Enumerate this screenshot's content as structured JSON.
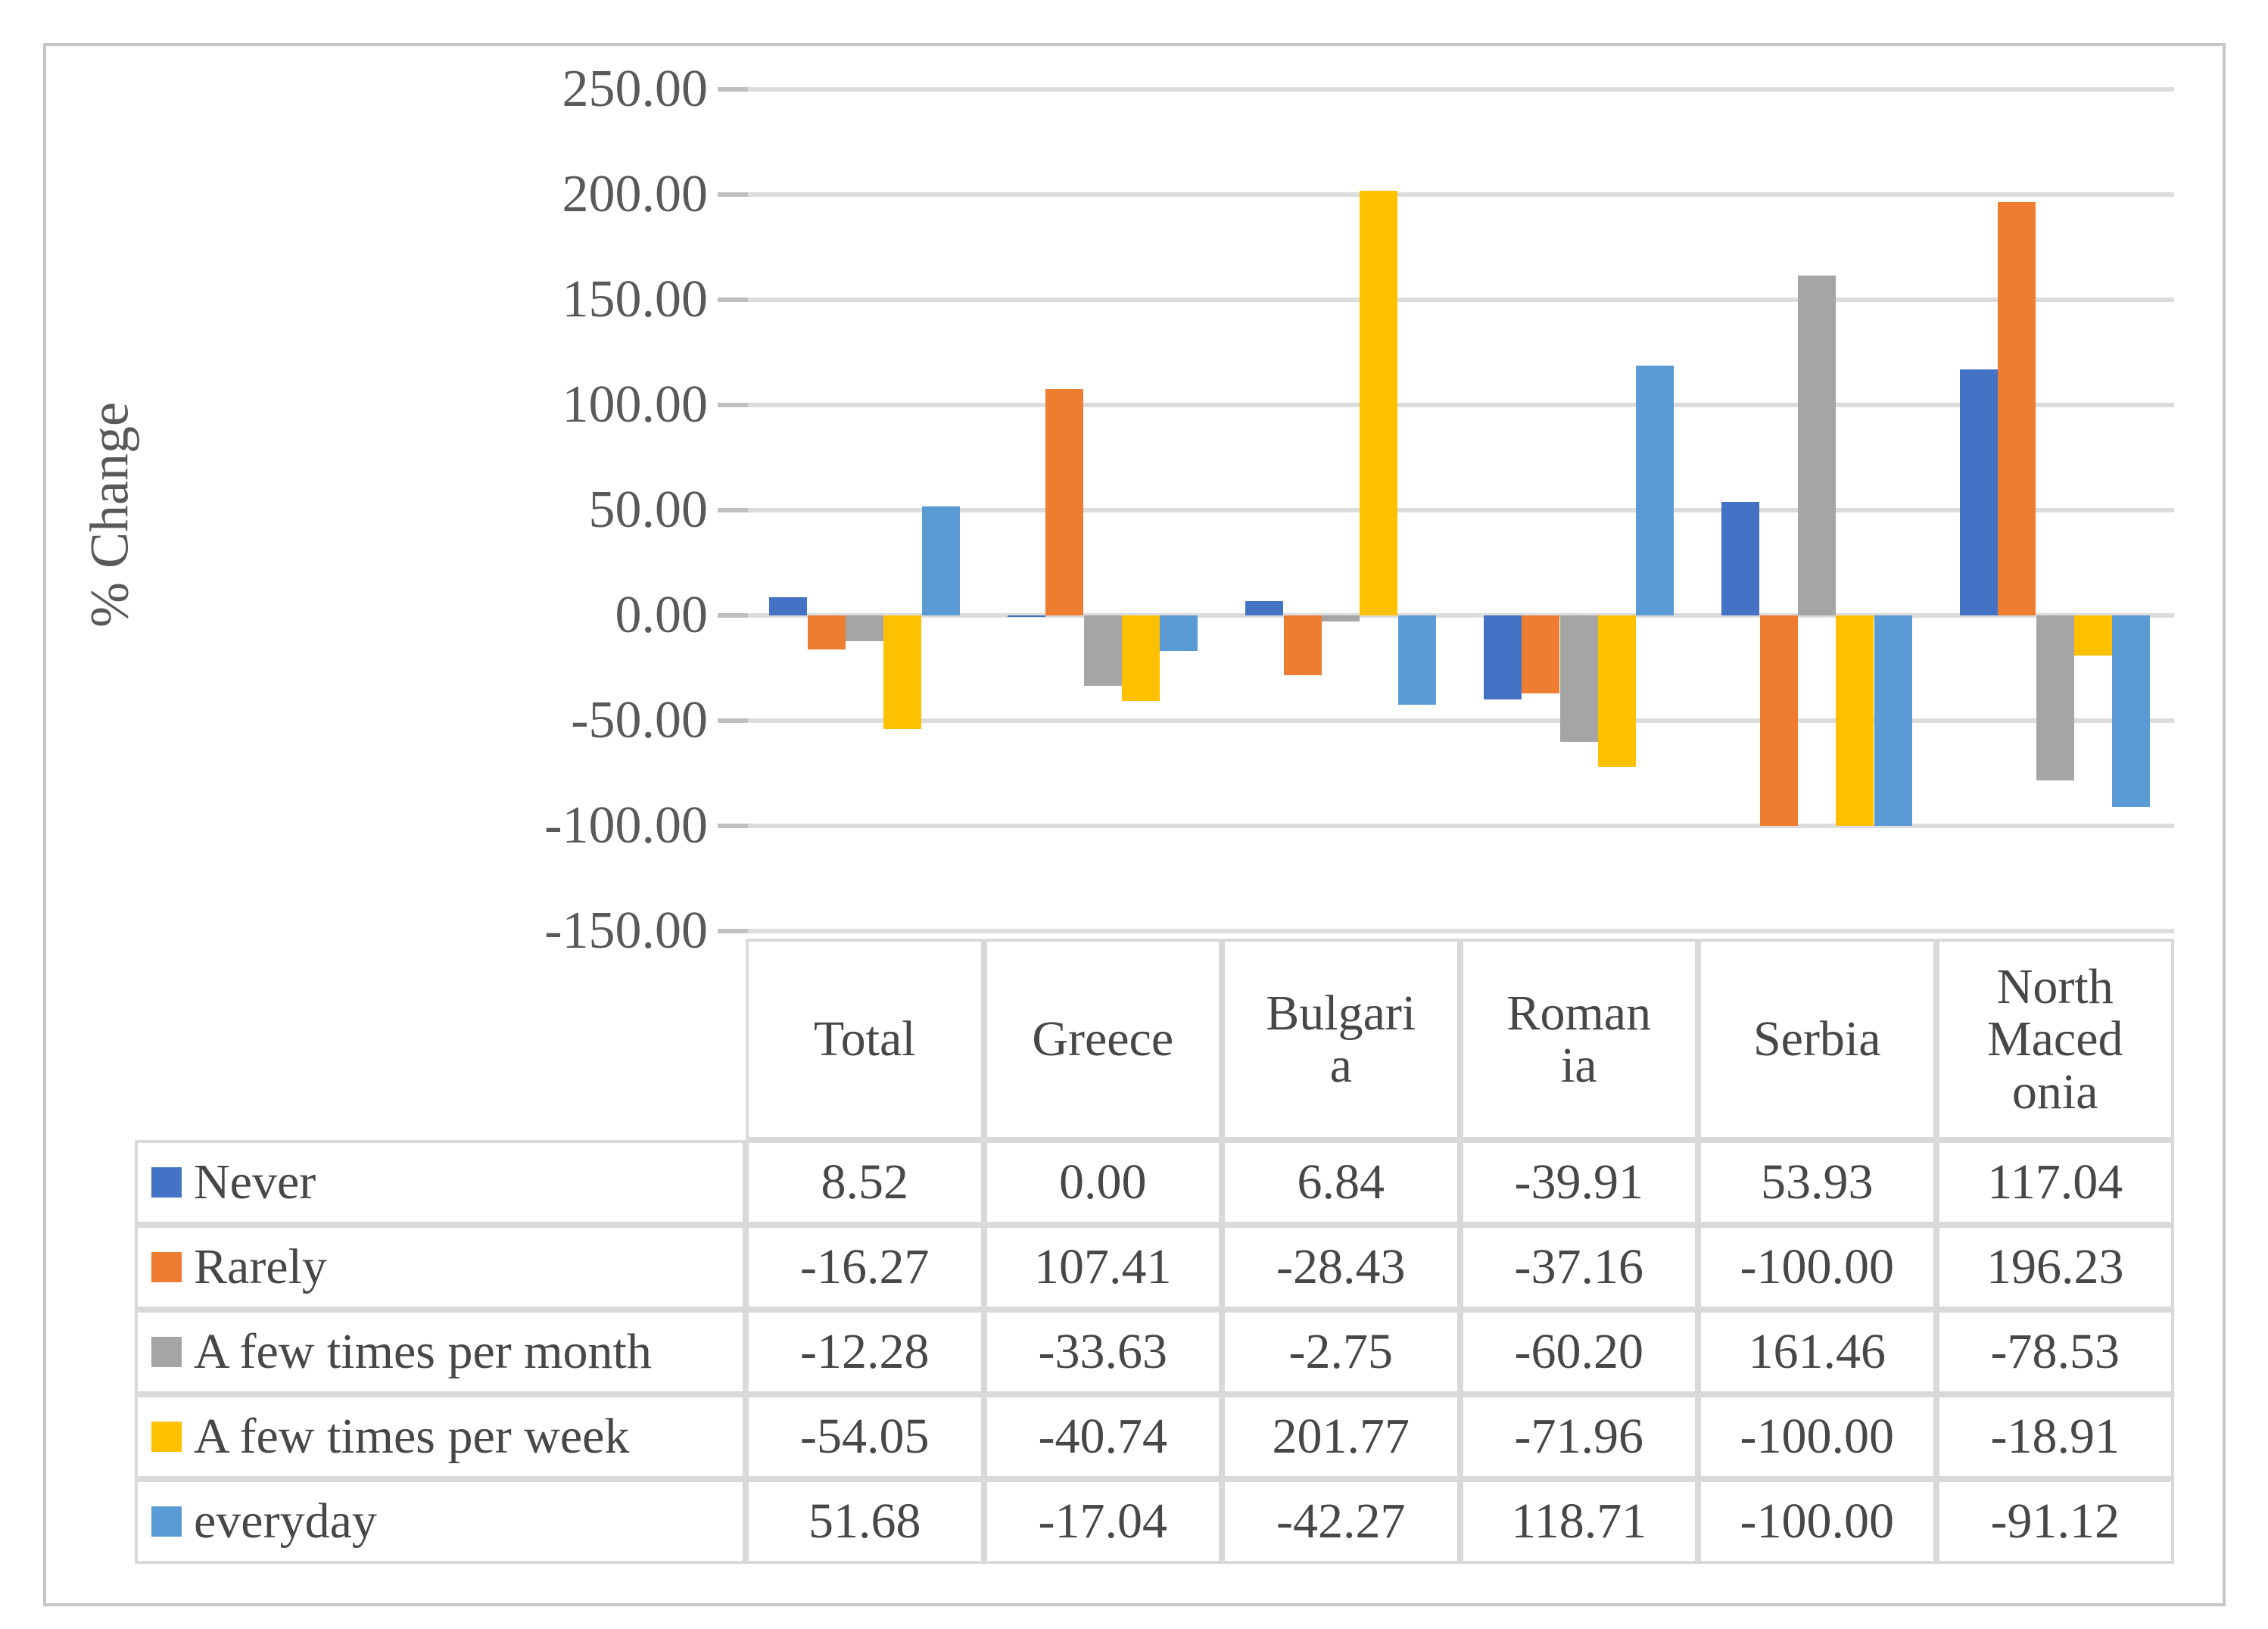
{
  "figure": {
    "background": "#ffffff",
    "border_color": "#c6c6c6"
  },
  "chart_data": {
    "type": "bar",
    "title": "",
    "xlabel": "",
    "ylabel": "% Change",
    "ylim": [
      -150,
      250
    ],
    "ytick_step": 50,
    "ytick_labels": [
      "250.00",
      "200.00",
      "150.00",
      "100.00",
      "50.00",
      "0.00",
      "-50.00",
      "-100.00",
      "-150.00"
    ],
    "grid": true,
    "legend_position": "left column of data table below chart",
    "gridline_color": "#dcdcdc",
    "categories": [
      "Total",
      "Greece",
      "Bulgaria",
      "Romania",
      "Serbia",
      "North Macedonia"
    ],
    "series": [
      {
        "name": "Never",
        "color": "#4472C4",
        "values": [
          8.52,
          0.0,
          6.84,
          -39.91,
          53.93,
          117.04
        ]
      },
      {
        "name": "Rarely",
        "color": "#ED7D31",
        "values": [
          -16.27,
          107.41,
          -28.43,
          -37.16,
          -100.0,
          196.23
        ]
      },
      {
        "name": "A few times per month",
        "color": "#A5A5A5",
        "values": [
          -12.28,
          -33.63,
          -2.75,
          -60.2,
          161.46,
          -78.53
        ]
      },
      {
        "name": "A few times per week",
        "color": "#FFC000",
        "values": [
          -54.05,
          -40.74,
          201.77,
          -71.96,
          -100.0,
          -18.91
        ]
      },
      {
        "name": "everyday",
        "color": "#5B9BD5",
        "values": [
          51.68,
          -17.04,
          -42.27,
          118.71,
          -100.0,
          -91.12
        ]
      }
    ]
  },
  "data_table": {
    "column_headers": [
      "Total",
      "Greece",
      "Bulgari\na",
      "Roman\nia",
      "Serbia",
      "North\nMaced\nonia"
    ],
    "rows": [
      {
        "label": "Never",
        "swatch_color": "#4472C4",
        "values": [
          "8.52",
          "0.00",
          "6.84",
          "-39.91",
          "53.93",
          "117.04"
        ]
      },
      {
        "label": "Rarely",
        "swatch_color": "#ED7D31",
        "values": [
          "-16.27",
          "107.41",
          "-28.43",
          "-37.16",
          "-100.00",
          "196.23"
        ]
      },
      {
        "label": "A few times per month",
        "swatch_color": "#A5A5A5",
        "values": [
          "-12.28",
          "-33.63",
          "-2.75",
          "-60.20",
          "161.46",
          "-78.53"
        ]
      },
      {
        "label": "A few times per week",
        "swatch_color": "#FFC000",
        "values": [
          "-54.05",
          "-40.74",
          "201.77",
          "-71.96",
          "-100.00",
          "-18.91"
        ]
      },
      {
        "label": "everyday",
        "swatch_color": "#5B9BD5",
        "values": [
          "51.68",
          "-17.04",
          "-42.27",
          "118.71",
          "-100.00",
          "-91.12"
        ]
      }
    ]
  }
}
